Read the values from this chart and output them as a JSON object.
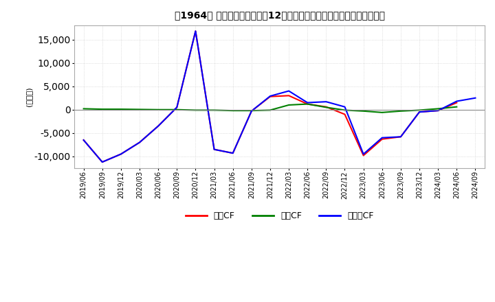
{
  "title": "【1964】 キャッシュフローの12か月移動合計の対前年同期増減額の推移",
  "ylabel": "(百万円)",
  "ylim": [
    -12500,
    18000
  ],
  "yticks": [
    -10000,
    -5000,
    0,
    5000,
    10000,
    15000
  ],
  "x_labels": [
    "2019/06",
    "2019/09",
    "2019/12",
    "2020/03",
    "2020/06",
    "2020/09",
    "2020/12",
    "2021/03",
    "2021/06",
    "2021/09",
    "2021/12",
    "2022/03",
    "2022/06",
    "2022/09",
    "2022/12",
    "2023/03",
    "2023/06",
    "2023/09",
    "2023/12",
    "2024/03",
    "2024/06",
    "2024/09"
  ],
  "series": {
    "営業CF": {
      "color": "#ff0000",
      "values": [
        -6500,
        -11200,
        -9500,
        -7000,
        -3500,
        500,
        16800,
        -8500,
        -9300,
        -300,
        2800,
        3000,
        1200,
        600,
        -1000,
        -9800,
        -6300,
        -5800,
        -500,
        -200,
        1500,
        null
      ]
    },
    "投資CF": {
      "color": "#008000",
      "values": [
        200,
        100,
        100,
        50,
        0,
        0,
        -100,
        -100,
        -200,
        -200,
        -100,
        1000,
        1200,
        500,
        -100,
        -300,
        -600,
        -300,
        -100,
        200,
        600,
        null
      ]
    },
    "フリーCF": {
      "color": "#0000ff",
      "values": [
        -6500,
        -11200,
        -9500,
        -7000,
        -3500,
        500,
        16800,
        -8500,
        -9300,
        -300,
        2900,
        4000,
        1500,
        1700,
        600,
        -9500,
        -6000,
        -5800,
        -500,
        -200,
        1800,
        2500
      ]
    }
  },
  "legend_labels": [
    "営業CF",
    "投資CF",
    "フリーCF"
  ],
  "legend_colors": [
    "#ff0000",
    "#008000",
    "#0000ff"
  ],
  "bg_color": "#ffffff",
  "grid_color": "#c8c8c8"
}
